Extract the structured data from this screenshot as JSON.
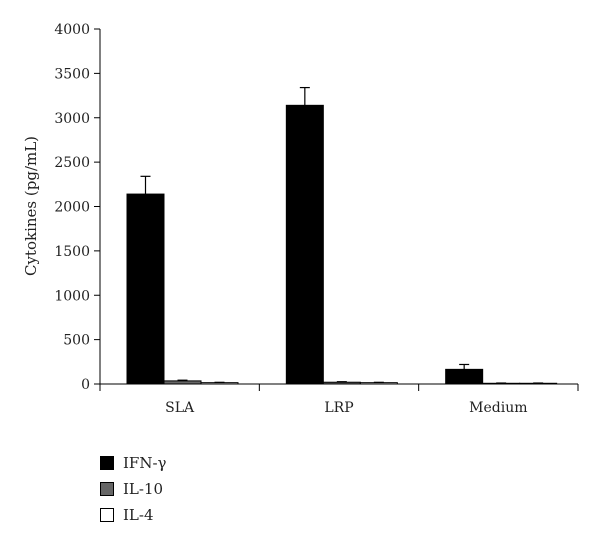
{
  "chart_data": {
    "type": "bar",
    "title": "",
    "xlabel": "",
    "ylabel": "Cytokines (pg/mL)",
    "ylim": [
      0,
      4000
    ],
    "yticks": [
      0,
      500,
      1000,
      1500,
      2000,
      2500,
      3000,
      3500,
      4000
    ],
    "categories": [
      "SLA",
      "LRP",
      "Medium"
    ],
    "grid": false,
    "legend_position": "bottom-left",
    "series": [
      {
        "name": "IFN-γ",
        "color": "#000000",
        "values": [
          2140,
          3140,
          165
        ],
        "errors": [
          200,
          200,
          55
        ]
      },
      {
        "name": "IL-10",
        "color": "#666666",
        "values": [
          35,
          20,
          8
        ],
        "errors": [
          8,
          6,
          3
        ]
      },
      {
        "name": "IL-4",
        "color": "#ffffff",
        "values": [
          15,
          15,
          8
        ],
        "errors": [
          4,
          4,
          3
        ]
      }
    ]
  }
}
